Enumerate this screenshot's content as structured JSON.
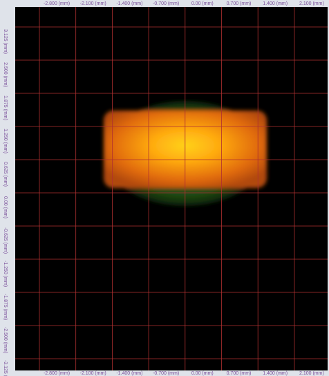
{
  "axes": {
    "top": [
      "-2.800 (mm)",
      "-2.100 (mm)",
      "-1.400 (mm)",
      "-0.700 (mm)",
      "0.00 (mm)",
      "0.700 (mm)",
      "1.400 (mm)",
      "2.100 (mm)"
    ],
    "bottom": [
      "-2.800 (mm)",
      "-2.100 (mm)",
      "-1.400 (mm)",
      "-0.700 (mm)",
      "0.00 (mm)",
      "0.700 (mm)",
      "1.400 (mm)",
      "2.100 (mm)"
    ],
    "left": [
      "3.125 (mm)",
      "2.500 (mm)",
      "1.875 (mm)",
      "1.250 (mm)",
      "0.625 (mm)",
      "0.00 (mm)",
      "-0.625 (mm)",
      "-1.250 (mm)",
      "-1.875 (mm)",
      "-2.500 (mm)",
      "-3.125 (mm)"
    ]
  }
}
